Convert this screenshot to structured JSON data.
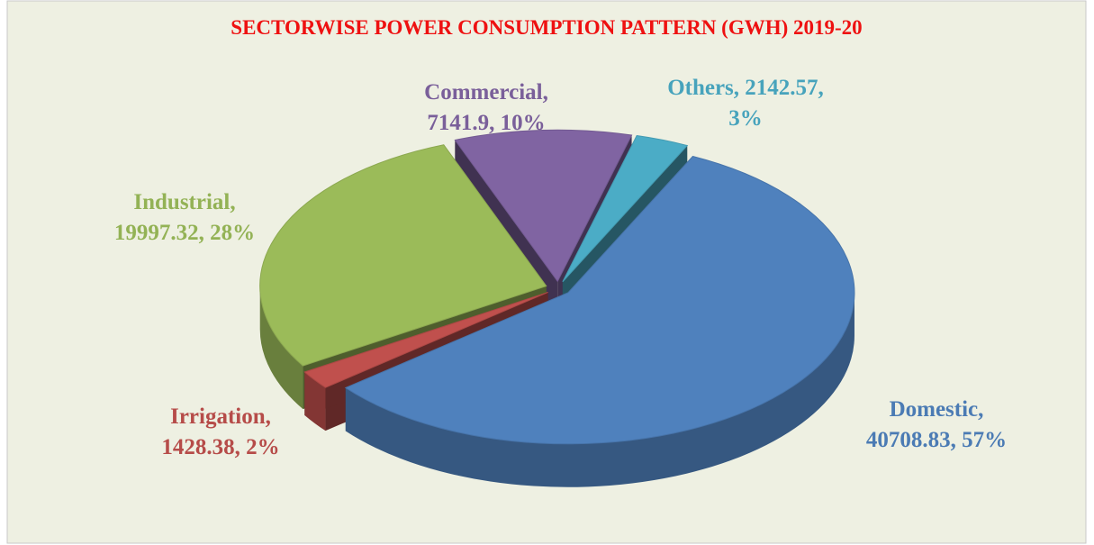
{
  "chart_data": {
    "type": "pie",
    "title": "SECTORWISE POWER CONSUMPTION PATTERN (GWH) 2019-20",
    "values": [
      2142.57,
      40708.83,
      1428.38,
      19997.32,
      7141.9
    ],
    "value_labels": [
      [
        "Others, 2142.57,",
        "3%"
      ],
      [
        "Domestic,",
        "40708.83, 57%"
      ],
      [
        "Irrigation,",
        "1428.38, 2%"
      ],
      [
        "Industrial,",
        "19997.32, 28%"
      ],
      [
        "Commercial,",
        "7141.9, 10%"
      ]
    ],
    "colors": [
      "#4bacc6",
      "#4f81bd",
      "#c0504d",
      "#9bbb59",
      "#8064a2"
    ],
    "start_angle": -75
  }
}
